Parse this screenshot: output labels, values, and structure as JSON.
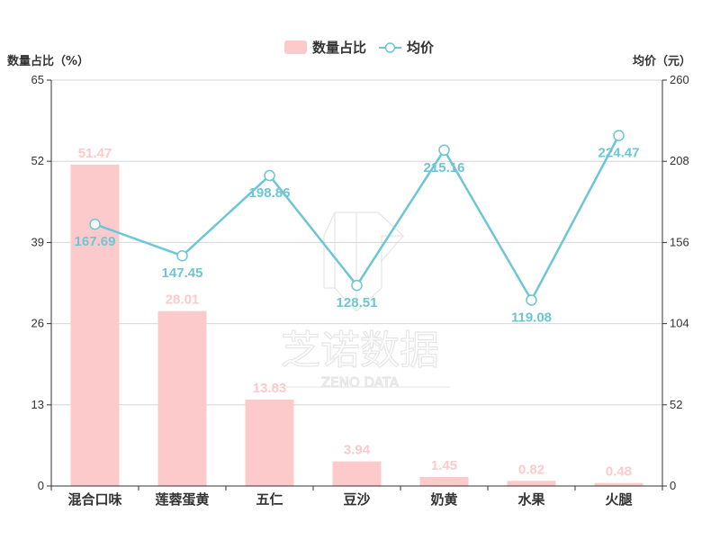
{
  "chart_data": {
    "type": "bar",
    "categories": [
      "混合口味",
      "莲蓉蛋黄",
      "五仁",
      "豆沙",
      "奶黄",
      "水果",
      "火腿"
    ],
    "series": [
      {
        "name": "数量占比",
        "type": "bar",
        "axis": "left",
        "values": [
          51.47,
          28.01,
          13.83,
          3.94,
          1.45,
          0.82,
          0.48
        ],
        "labels": [
          "51.47",
          "28.01",
          "13.83",
          "3.94",
          "1.45",
          "0.82",
          "0.48"
        ]
      },
      {
        "name": "均价",
        "type": "line",
        "axis": "right",
        "values": [
          167.69,
          147.45,
          198.86,
          128.51,
          215.16,
          119.08,
          224.47
        ],
        "labels": [
          "167.69",
          "147.45",
          "198.86",
          "128.51",
          "215.16",
          "119.08",
          "224.47"
        ]
      }
    ],
    "y_left": {
      "label": "数量占比（%）",
      "ylim": [
        0,
        65
      ],
      "ticks": [
        "0",
        "13",
        "26",
        "39",
        "52",
        "65"
      ]
    },
    "y_right": {
      "label": "均价（元）",
      "ylim": [
        0,
        260
      ],
      "ticks": [
        "0",
        "52",
        "104",
        "156",
        "208",
        "260"
      ]
    },
    "grid": true,
    "legend_position": "top-center",
    "colors": {
      "bar": "#fccaca",
      "line": "#6cc6d6"
    }
  },
  "watermark": {
    "main": "芝诺数据",
    "sub": "ZENO DATA"
  }
}
